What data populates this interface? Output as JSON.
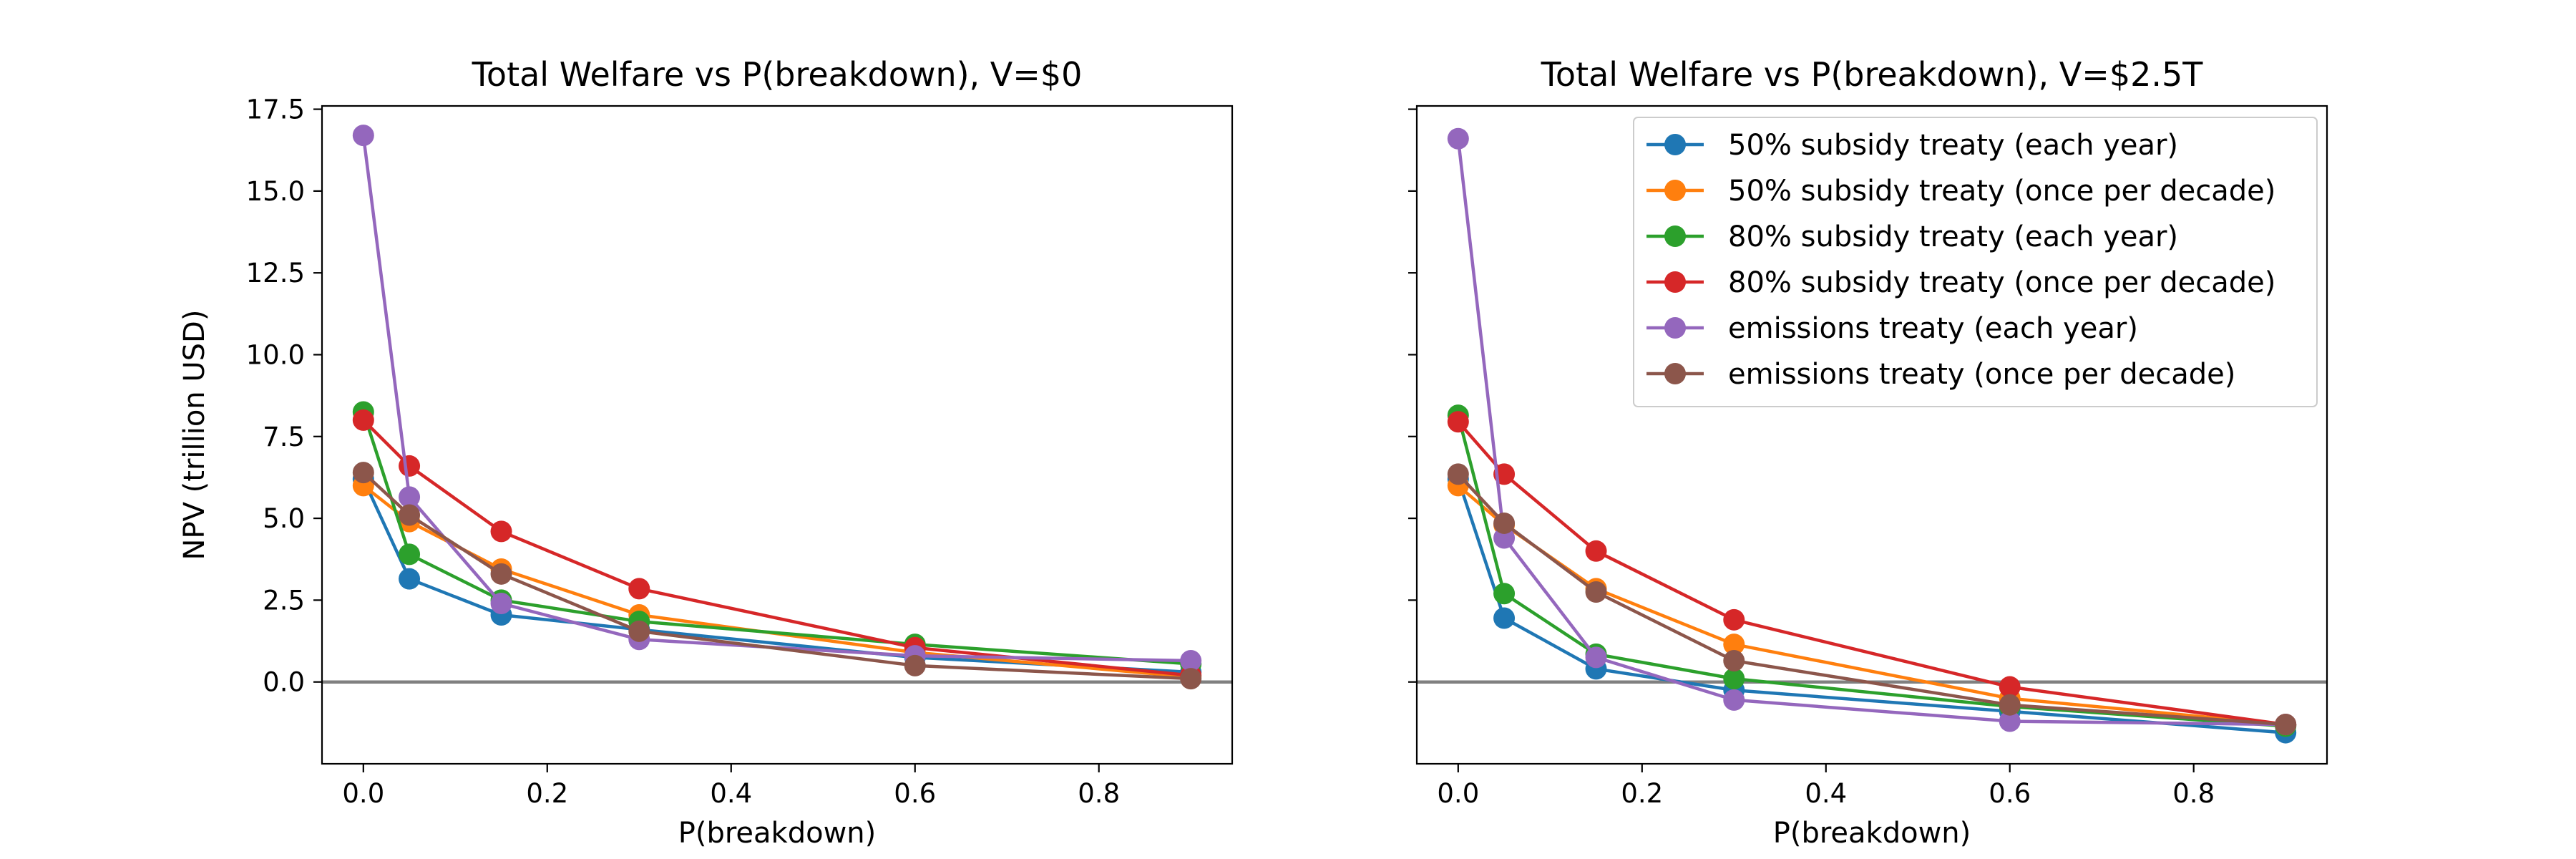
{
  "chart_data": [
    {
      "type": "line",
      "title": "Total Welfare vs P(breakdown), V=$0",
      "xlabel": "P(breakdown)",
      "ylabel": "NPV (trillion USD)",
      "xlim": [
        -0.045,
        0.945
      ],
      "ylim": [
        -2.5,
        17.6
      ],
      "xticks": [
        "0.0",
        "0.2",
        "0.4",
        "0.6",
        "0.8"
      ],
      "yticks": [
        "0.0",
        "2.5",
        "5.0",
        "7.5",
        "10.0",
        "12.5",
        "15.0",
        "17.5"
      ],
      "show_yticklabels": true,
      "grid": false,
      "reference_line_y": 0,
      "x": [
        0,
        0.05,
        0.15,
        0.3,
        0.6,
        0.9
      ],
      "series": [
        {
          "name": "50% subsidy treaty (each year)",
          "color": "#1f77b4",
          "values": [
            6.2,
            3.15,
            2.05,
            1.6,
            0.75,
            0.3
          ]
        },
        {
          "name": "50% subsidy treaty (once per decade)",
          "color": "#ff7f0e",
          "values": [
            6.0,
            4.9,
            3.45,
            2.05,
            0.9,
            0.15
          ]
        },
        {
          "name": "80% subsidy treaty (each year)",
          "color": "#2ca02c",
          "values": [
            8.25,
            3.9,
            2.5,
            1.85,
            1.15,
            0.55
          ]
        },
        {
          "name": "80% subsidy treaty (once per decade)",
          "color": "#d62728",
          "values": [
            8.0,
            6.6,
            4.6,
            2.85,
            1.05,
            0.2
          ]
        },
        {
          "name": "emissions treaty (each year)",
          "color": "#9467bd",
          "values": [
            16.7,
            5.65,
            2.4,
            1.3,
            0.8,
            0.65
          ]
        },
        {
          "name": "emissions treaty (once per decade)",
          "color": "#8c564b",
          "values": [
            6.4,
            5.1,
            3.3,
            1.55,
            0.5,
            0.1
          ]
        }
      ]
    },
    {
      "type": "line",
      "title": "Total Welfare vs P(breakdown), V=$2.5T",
      "xlabel": "P(breakdown)",
      "ylabel": "",
      "xlim": [
        -0.045,
        0.945
      ],
      "ylim": [
        -2.5,
        17.6
      ],
      "xticks": [
        "0.0",
        "0.2",
        "0.4",
        "0.6",
        "0.8"
      ],
      "yticks": [
        "0.0",
        "2.5",
        "5.0",
        "7.5",
        "10.0",
        "12.5",
        "15.0",
        "17.5"
      ],
      "show_yticklabels": false,
      "grid": false,
      "reference_line_y": 0,
      "legend_position": "top-right",
      "x": [
        0,
        0.05,
        0.15,
        0.3,
        0.6,
        0.9
      ],
      "series": [
        {
          "name": "50% subsidy treaty (each year)",
          "color": "#1f77b4",
          "values": [
            6.2,
            1.95,
            0.4,
            -0.25,
            -0.9,
            -1.55
          ]
        },
        {
          "name": "50% subsidy treaty (once per decade)",
          "color": "#ff7f0e",
          "values": [
            6.0,
            4.8,
            2.85,
            1.15,
            -0.5,
            -1.3
          ]
        },
        {
          "name": "80% subsidy treaty (each year)",
          "color": "#2ca02c",
          "values": [
            8.15,
            2.7,
            0.85,
            0.1,
            -0.75,
            -1.35
          ]
        },
        {
          "name": "80% subsidy treaty (once per decade)",
          "color": "#d62728",
          "values": [
            7.95,
            6.35,
            4.0,
            1.9,
            -0.15,
            -1.3
          ]
        },
        {
          "name": "emissions treaty (each year)",
          "color": "#9467bd",
          "values": [
            16.6,
            4.4,
            0.75,
            -0.55,
            -1.2,
            -1.3
          ]
        },
        {
          "name": "emissions treaty (once per decade)",
          "color": "#8c564b",
          "values": [
            6.35,
            4.85,
            2.75,
            0.65,
            -0.7,
            -1.3
          ]
        }
      ]
    }
  ]
}
